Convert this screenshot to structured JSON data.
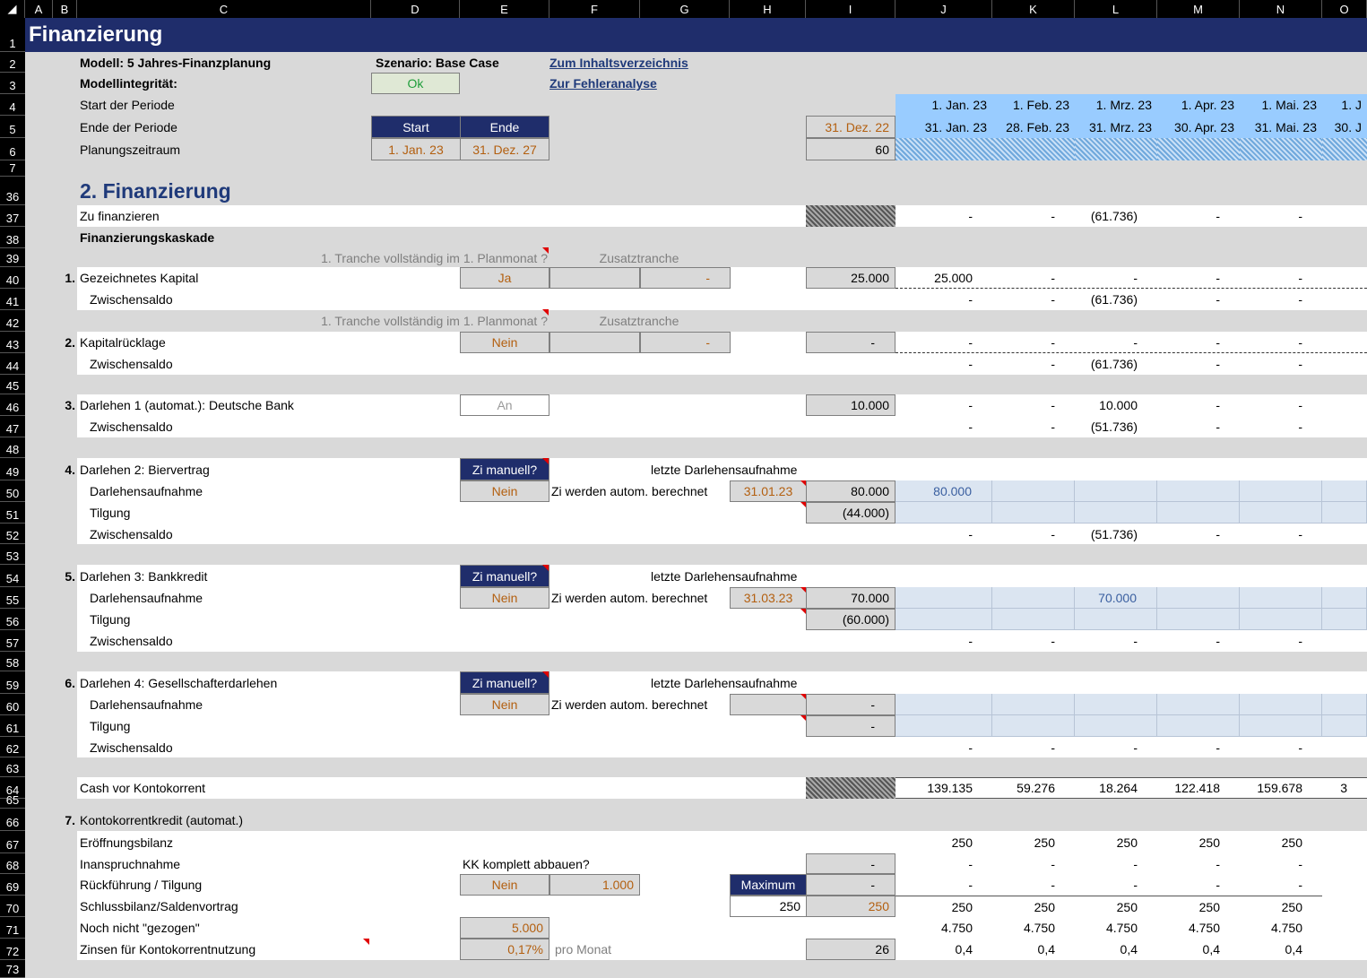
{
  "columns": [
    "A",
    "B",
    "C",
    "D",
    "E",
    "F",
    "G",
    "H",
    "I",
    "J",
    "K",
    "L",
    "M",
    "N",
    "O"
  ],
  "rows": [
    "1",
    "2",
    "3",
    "4",
    "5",
    "6",
    "7",
    "36",
    "37",
    "38",
    "39",
    "40",
    "41",
    "42",
    "43",
    "44",
    "45",
    "46",
    "47",
    "48",
    "49",
    "50",
    "51",
    "52",
    "53",
    "54",
    "55",
    "56",
    "57",
    "58",
    "59",
    "60",
    "61",
    "62",
    "63",
    "64",
    "65",
    "66",
    "67",
    "68",
    "69",
    "70",
    "71",
    "72",
    "73"
  ],
  "title": "Finanzierung",
  "header": {
    "modell": "Modell: 5 Jahres-Finanzplanung",
    "szenario": "Szenario: Base Case",
    "inhalt_link": "Zum Inhaltsverzeichnis",
    "integritaet": "Modellintegrität:",
    "ok": "Ok",
    "fehler_link": "Zur Fehleranalyse",
    "start_periode": "Start der Periode",
    "ende_periode": "Ende der Periode",
    "planungszeitraum": "Planungszeitraum",
    "start_hdr": "Start",
    "ende_hdr": "Ende",
    "start_val": "1. Jan. 23",
    "ende_val": "31. Dez. 27",
    "i5": "31. Dez. 22",
    "i6": "60"
  },
  "period_start": [
    "1. Jan. 23",
    "1. Feb. 23",
    "1. Mrz. 23",
    "1. Apr. 23",
    "1. Mai. 23",
    "1. J"
  ],
  "period_end": [
    "31. Jan. 23",
    "28. Feb. 23",
    "31. Mrz. 23",
    "30. Apr. 23",
    "31. Mai. 23",
    "30. J"
  ],
  "section_title": "2. Finanzierung",
  "labels": {
    "zu_fin": "Zu finanzieren",
    "kaskade": "Finanzierungskaskade",
    "tranche": "1. Tranche vollständig im 1. Planmonat ?",
    "zusatz": "Zusatztranche",
    "n1": "1.",
    "gez": "Gezeichnetes Kapital",
    "zwischensaldo": "Zwischensaldo",
    "n2": "2.",
    "kaprl": "Kapitalrücklage",
    "n3": "3.",
    "d1": "Darlehen 1 (automat.): Deutsche Bank",
    "n4": "4.",
    "d2": "Darlehen 2: Biervertrag",
    "aufnahme": "Darlehensaufnahme",
    "tilgung": "Tilgung",
    "zi_manuell": "Zi manuell?",
    "letzte": "letzte Darlehensaufnahme",
    "zi_auto": "Zi werden autom. berechnet",
    "n5": "5.",
    "d3": "Darlehen 3: Bankkredit",
    "n6": "6.",
    "d4": "Darlehen 4: Gesellschafterdarlehen",
    "cash": "Cash vor Kontokorrent",
    "n7": "7.",
    "kk": "Kontokorrentkredit (automat.)",
    "eroeff": "Eröffnungsbilanz",
    "inanspr": "Inanspruchnahme",
    "kk_abbau": "KK komplett abbauen?",
    "rueck": "Rückführung / Tilgung",
    "maximum": "Maximum",
    "schluss": "Schlussbilanz/Saldenvortrag",
    "noch": "Noch nicht \"gezogen\"",
    "zinsen": "Zinsen für Kontokorrentnutzung",
    "pro_monat": "pro Monat"
  },
  "inputs": {
    "ja": "Ja",
    "nein": "Nein",
    "an": "An",
    "dash": "-",
    "d2_date": "31.01.23",
    "d3_date": "31.03.23",
    "kk_betrag": "1.000",
    "kk_max": "250",
    "kk_limit": "5.000",
    "kk_zins": "0,17%"
  },
  "col_i": {
    "r40": "25.000",
    "r43": "-",
    "r46": "10.000",
    "r50": "80.000",
    "r51": "(44.000)",
    "r55": "70.000",
    "r56": "(60.000)",
    "r60": "-",
    "r61": "-",
    "r68": "-",
    "r69": "-",
    "r70": "250",
    "r72": "26"
  },
  "rows_data": {
    "r37": [
      "-",
      "-",
      "(61.736)",
      "-",
      "-"
    ],
    "r40": [
      "25.000",
      "-",
      "-",
      "-",
      "-"
    ],
    "r41": [
      "-",
      "-",
      "(61.736)",
      "-",
      "-"
    ],
    "r43": [
      "-",
      "-",
      "-",
      "-",
      "-"
    ],
    "r44": [
      "-",
      "-",
      "(61.736)",
      "-",
      "-"
    ],
    "r46": [
      "-",
      "-",
      "10.000",
      "-",
      "-"
    ],
    "r47": [
      "-",
      "-",
      "(51.736)",
      "-",
      "-"
    ],
    "r50": [
      "80.000",
      "",
      "",
      "",
      ""
    ],
    "r52": [
      "-",
      "-",
      "(51.736)",
      "-",
      "-"
    ],
    "r55": [
      "",
      "",
      "70.000",
      "",
      ""
    ],
    "r57": [
      "-",
      "-",
      "-",
      "-",
      "-"
    ],
    "r62": [
      "-",
      "-",
      "-",
      "-",
      "-"
    ],
    "r64": [
      "139.135",
      "59.276",
      "18.264",
      "122.418",
      "159.678",
      "3"
    ],
    "r67": [
      "250",
      "250",
      "250",
      "250",
      "250"
    ],
    "r68": [
      "-",
      "-",
      "-",
      "-",
      "-"
    ],
    "r69": [
      "-",
      "-",
      "-",
      "-",
      "-"
    ],
    "r70": [
      "250",
      "250",
      "250",
      "250",
      "250"
    ],
    "r71": [
      "4.750",
      "4.750",
      "4.750",
      "4.750",
      "4.750",
      ""
    ],
    "r72": [
      "0,4",
      "0,4",
      "0,4",
      "0,4",
      "0,4"
    ]
  }
}
